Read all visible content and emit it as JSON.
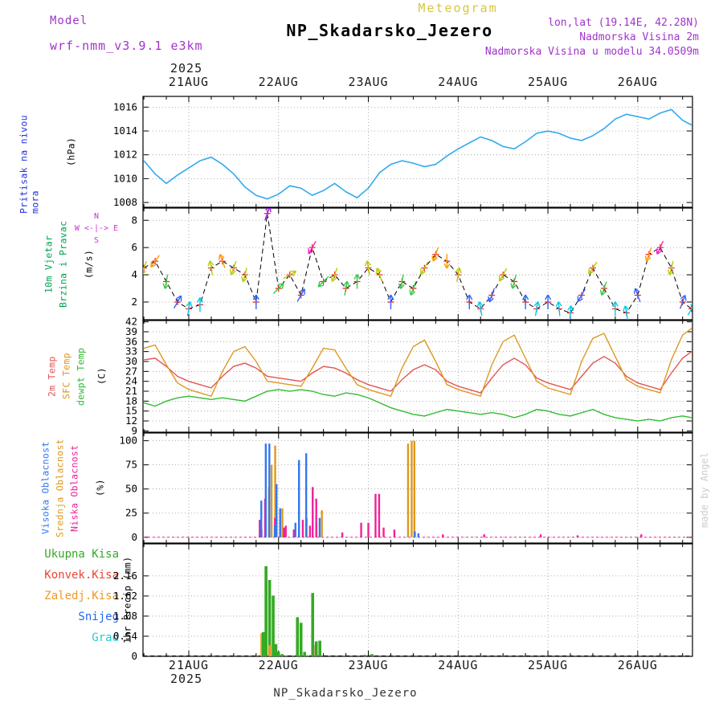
{
  "header": {
    "meteogram_label": "Meteogram",
    "model_label": "Model",
    "model_name": "wrf-nmm_v3.9.1 e3km",
    "title": "NP_Skadarsko_Jezero",
    "lonlat": "lon,lat (19.14E, 42.28N)",
    "elevation": "Nadmorska Visina 2m",
    "model_elevation": "Nadmorska Visina u modelu 34.0509m",
    "year_top": "2025",
    "year_bottom": "2025",
    "footer": "NP_Skadarsko_Jezero",
    "credit": "made by Angel"
  },
  "axis": {
    "x_range": [
      20.49,
      26.61
    ],
    "x_ticks": [
      21,
      22,
      23,
      24,
      25,
      26
    ],
    "x_tick_labels": [
      "21AUG",
      "22AUG",
      "23AUG",
      "24AUG",
      "25AUG",
      "26AUG"
    ],
    "minor_tick_days": 0.25
  },
  "panels": {
    "pressure": {
      "label": "Pritisak na nivou mora",
      "label_color": "#2233dd",
      "unit": "(hPa)",
      "yticks": [
        1008,
        1010,
        1012,
        1014,
        1016
      ],
      "yrange": [
        1007.6,
        1016.9
      ]
    },
    "wind": {
      "labels": [
        "10m Vjetar",
        "Brzina i Pravac"
      ],
      "label_color": "#00a550",
      "unit": "(m/s)",
      "yticks": [
        2,
        4,
        6,
        8
      ],
      "yrange": [
        0.7,
        8.9
      ],
      "compass": {
        "n": "N",
        "we": "W <-|-> E",
        "s": "S"
      }
    },
    "temp": {
      "labels": [
        {
          "text": "2m Temp",
          "color": "#e25555"
        },
        {
          "text": "SFC Temp",
          "color": "#dd9922"
        },
        {
          "text": "dewpt Temp",
          "color": "#33bb33"
        }
      ],
      "unit": "(C)",
      "yticks": [
        9,
        12,
        15,
        18,
        21,
        24,
        27,
        30,
        33,
        36,
        39,
        42
      ],
      "yrange": [
        8.6,
        42.4
      ]
    },
    "cloud": {
      "labels": [
        {
          "text": "Visoka Oblacnost",
          "color": "#3377ee"
        },
        {
          "text": "Srednja Oblacnost",
          "color": "#dd9922"
        },
        {
          "text": "Niska Oblacnost",
          "color": "#ee2299"
        }
      ],
      "unit": "(%)",
      "yticks": [
        0,
        25,
        50,
        75,
        100
      ],
      "yrange": [
        -6,
        108
      ]
    },
    "precip": {
      "legend": [
        {
          "text": "Ukupna Kisa",
          "color": "#33aa22"
        },
        {
          "text": "Konvek.Kisa",
          "color": "#ee4433"
        },
        {
          "text": "Zaledj.Kisa",
          "color": "#ee9922"
        },
        {
          "text": "Snijeg",
          "color": "#2266ee"
        },
        {
          "text": "Grad",
          "color": "#22cccc"
        }
      ],
      "unit": "1hr Precip (mm)",
      "yticks": [
        0,
        0.54,
        1.08,
        1.62,
        2.16
      ],
      "yrange": [
        0,
        3.02
      ]
    }
  },
  "chart_data": [
    {
      "type": "line",
      "name": "Pritisak na nivou mora",
      "unit": "hPa",
      "color": "#33aaee",
      "ylim": [
        1007.6,
        1016.9
      ],
      "x": [
        20.5,
        20.625,
        20.75,
        20.875,
        21,
        21.125,
        21.25,
        21.375,
        21.5,
        21.625,
        21.75,
        21.875,
        22,
        22.125,
        22.25,
        22.375,
        22.5,
        22.625,
        22.75,
        22.875,
        23,
        23.125,
        23.25,
        23.375,
        23.5,
        23.625,
        23.75,
        23.875,
        24,
        24.125,
        24.25,
        24.375,
        24.5,
        24.625,
        24.75,
        24.875,
        25,
        25.125,
        25.25,
        25.375,
        25.5,
        25.625,
        25.75,
        25.875,
        26,
        26.125,
        26.25,
        26.375,
        26.5,
        26.6
      ],
      "y": [
        1011.5,
        1010.4,
        1009.6,
        1010.3,
        1010.9,
        1011.5,
        1011.8,
        1011.2,
        1010.4,
        1009.3,
        1008.6,
        1008.3,
        1008.7,
        1009.4,
        1009.2,
        1008.6,
        1009.0,
        1009.6,
        1008.9,
        1008.4,
        1009.2,
        1010.5,
        1011.2,
        1011.5,
        1011.3,
        1011.0,
        1011.2,
        1011.9,
        1012.5,
        1013.0,
        1013.5,
        1013.2,
        1012.7,
        1012.5,
        1013.1,
        1013.8,
        1014.0,
        1013.8,
        1013.4,
        1013.2,
        1013.6,
        1014.2,
        1015.0,
        1015.4,
        1015.2,
        1015.0,
        1015.5,
        1015.8,
        1014.9,
        1014.5
      ]
    },
    {
      "type": "line",
      "name": "10m Vjetar Brzina i Pravac",
      "unit": "m/s",
      "line_color": "#000000",
      "marker": "plus",
      "marker_color": "#ee2222",
      "ylim": [
        0.7,
        8.9
      ],
      "palette": {
        "thresholds": [
          2,
          3,
          4,
          5,
          6,
          7.5
        ],
        "colors": [
          "#00ccee",
          "#3366ff",
          "#33cc44",
          "#b8cc00",
          "#ff9900",
          "#ee22cc",
          "#9922ee"
        ]
      },
      "x": [
        20.5,
        20.625,
        20.75,
        20.875,
        21,
        21.125,
        21.25,
        21.375,
        21.5,
        21.625,
        21.75,
        21.875,
        22,
        22.125,
        22.25,
        22.375,
        22.5,
        22.625,
        22.75,
        22.875,
        23,
        23.125,
        23.25,
        23.375,
        23.5,
        23.625,
        23.75,
        23.875,
        24,
        24.125,
        24.25,
        24.375,
        24.5,
        24.625,
        24.75,
        24.875,
        25,
        25.125,
        25.25,
        25.375,
        25.5,
        25.625,
        25.75,
        25.875,
        26,
        26.125,
        26.25,
        26.375,
        26.5,
        26.6
      ],
      "speed": [
        4.5,
        5.0,
        3.5,
        2.0,
        1.5,
        1.8,
        4.5,
        5.0,
        4.5,
        4.0,
        2.0,
        8.5,
        3.0,
        4.0,
        2.5,
        6.0,
        3.5,
        4.0,
        3.0,
        3.5,
        4.5,
        4.0,
        2.0,
        3.5,
        3.0,
        4.5,
        5.5,
        5.0,
        4.0,
        2.0,
        1.5,
        2.5,
        4.0,
        3.5,
        2.0,
        1.5,
        2.0,
        1.5,
        1.2,
        2.5,
        4.5,
        3.0,
        1.5,
        1.2,
        2.5,
        5.5,
        6.0,
        4.5,
        2.0,
        1.5
      ],
      "dir_deg": [
        200,
        215,
        190,
        30,
        10,
        0,
        350,
        340,
        200,
        195,
        0,
        20,
        45,
        60,
        30,
        210,
        225,
        200,
        10,
        0,
        350,
        340,
        0,
        190,
        200,
        210,
        200,
        180,
        10,
        0,
        350,
        200,
        210,
        195,
        0,
        10,
        0,
        355,
        5,
        210,
        215,
        200,
        0,
        350,
        340,
        200,
        205,
        195,
        20,
        30
      ]
    },
    {
      "type": "line",
      "name": "Temperatura",
      "unit": "C",
      "ylim": [
        8.6,
        42.4
      ],
      "x": [
        20.5,
        20.625,
        20.75,
        20.875,
        21,
        21.125,
        21.25,
        21.375,
        21.5,
        21.625,
        21.75,
        21.875,
        22,
        22.125,
        22.25,
        22.375,
        22.5,
        22.625,
        22.75,
        22.875,
        23,
        23.125,
        23.25,
        23.375,
        23.5,
        23.625,
        23.75,
        23.875,
        24,
        24.125,
        24.25,
        24.375,
        24.5,
        24.625,
        24.75,
        24.875,
        25,
        25.125,
        25.25,
        25.375,
        25.5,
        25.625,
        25.75,
        25.875,
        26,
        26.125,
        26.25,
        26.375,
        26.5,
        26.6
      ],
      "series": [
        {
          "key": "t2m",
          "name": "2m Temp",
          "color": "#e25555",
          "values": [
            30.5,
            31.0,
            28.5,
            25.5,
            24.0,
            23.0,
            22.0,
            25.5,
            28.5,
            29.5,
            28.0,
            25.5,
            25.0,
            24.5,
            24.0,
            26.5,
            28.5,
            28.0,
            26.5,
            24.5,
            23.0,
            22.0,
            21.0,
            24.5,
            27.5,
            29.0,
            27.5,
            24.0,
            22.5,
            21.5,
            20.5,
            25.0,
            29.0,
            31.0,
            29.0,
            25.0,
            23.5,
            22.5,
            21.5,
            25.5,
            29.5,
            31.5,
            29.5,
            25.5,
            23.5,
            22.5,
            21.5,
            26.5,
            31.0,
            33.0
          ]
        },
        {
          "key": "sfc",
          "name": "SFC Temp",
          "color": "#dd9922",
          "values": [
            34.0,
            35.0,
            29.0,
            23.5,
            21.5,
            20.5,
            19.5,
            27.0,
            33.0,
            34.5,
            30.0,
            24.0,
            23.5,
            23.0,
            22.5,
            28.0,
            34.0,
            33.5,
            28.0,
            23.0,
            21.5,
            20.5,
            19.5,
            28.0,
            34.5,
            36.5,
            30.0,
            23.0,
            21.5,
            20.5,
            19.5,
            29.0,
            36.0,
            38.0,
            31.0,
            24.0,
            22.0,
            21.0,
            20.0,
            30.0,
            37.0,
            38.5,
            31.5,
            24.5,
            22.5,
            21.5,
            20.5,
            30.5,
            38.0,
            40.0
          ]
        },
        {
          "key": "dewpt",
          "name": "dewpt Temp",
          "color": "#33bb33",
          "values": [
            17.5,
            16.5,
            18.0,
            19.0,
            19.5,
            19.0,
            18.5,
            19.0,
            18.5,
            18.0,
            19.5,
            21.0,
            21.5,
            21.0,
            21.5,
            21.0,
            20.0,
            19.5,
            20.5,
            20.0,
            19.0,
            17.5,
            16.0,
            15.0,
            14.0,
            13.5,
            14.5,
            15.5,
            15.0,
            14.5,
            14.0,
            14.5,
            14.0,
            13.0,
            14.0,
            15.5,
            15.0,
            14.0,
            13.5,
            14.5,
            15.5,
            14.0,
            13.0,
            12.5,
            12.0,
            12.5,
            12.0,
            13.0,
            13.5,
            13.0
          ]
        }
      ]
    },
    {
      "type": "bar",
      "name": "Oblacnost",
      "unit": "%",
      "ylim": [
        -6,
        108
      ],
      "series": {
        "v": {
          "name": "Visoka Oblacnost",
          "color": "#3377ee",
          "offset": -2.5
        },
        "s": {
          "name": "Srednja Oblacnost",
          "color": "#dd9922",
          "offset": 2.5
        },
        "n": {
          "name": "Niska Oblacnost",
          "color": "#ee2299",
          "offset": 0
        }
      },
      "bars": [
        [
          21.79,
          "n",
          18
        ],
        [
          21.81,
          "n",
          8
        ],
        [
          21.83,
          "v",
          38
        ],
        [
          21.85,
          "n",
          40
        ],
        [
          21.87,
          "s",
          52
        ],
        [
          21.88,
          "v",
          97
        ],
        [
          21.9,
          "s",
          75
        ],
        [
          21.92,
          "v",
          97
        ],
        [
          21.94,
          "s",
          95
        ],
        [
          21.96,
          "n",
          20
        ],
        [
          21.98,
          "v",
          12
        ],
        [
          22.0,
          "v",
          55
        ],
        [
          22.02,
          "s",
          30
        ],
        [
          22.04,
          "v",
          30
        ],
        [
          22.06,
          "n",
          10
        ],
        [
          22.08,
          "n",
          12
        ],
        [
          22.17,
          "n",
          8
        ],
        [
          22.21,
          "v",
          15
        ],
        [
          22.25,
          "v",
          80
        ],
        [
          22.27,
          "n",
          18
        ],
        [
          22.29,
          "s",
          20
        ],
        [
          22.33,
          "v",
          87
        ],
        [
          22.35,
          "n",
          12
        ],
        [
          22.38,
          "n",
          52
        ],
        [
          22.4,
          "s",
          15
        ],
        [
          22.42,
          "n",
          40
        ],
        [
          22.46,
          "s",
          28
        ],
        [
          22.48,
          "v",
          20
        ],
        [
          22.71,
          "n",
          5
        ],
        [
          22.92,
          "n",
          15
        ],
        [
          23.0,
          "n",
          15
        ],
        [
          23.08,
          "n",
          45
        ],
        [
          23.12,
          "n",
          45
        ],
        [
          23.17,
          "n",
          10
        ],
        [
          23.29,
          "n",
          8
        ],
        [
          23.42,
          "s",
          97
        ],
        [
          23.46,
          "s",
          100
        ],
        [
          23.49,
          "s",
          100
        ],
        [
          23.54,
          "v",
          6
        ],
        [
          23.58,
          "v",
          4
        ],
        [
          23.83,
          "n",
          3
        ],
        [
          24.29,
          "n",
          3
        ],
        [
          24.92,
          "n",
          3
        ],
        [
          25.33,
          "n",
          2
        ],
        [
          26.04,
          "n",
          3
        ]
      ]
    },
    {
      "type": "bar",
      "name": "1hr Precip",
      "unit": "mm",
      "ylim": [
        0,
        3.02
      ],
      "series": {
        "u": {
          "name": "Ukupna Kisa",
          "color": "#33aa22",
          "offset": 0
        },
        "k": {
          "name": "Konvek.Kisa",
          "color": "#ee4433",
          "offset": 1.8
        },
        "z": {
          "name": "Zaledj.Kisa",
          "color": "#ee9922",
          "offset": -1.8
        },
        "sn": {
          "name": "Snijeg",
          "color": "#2266ee",
          "offset": 0
        },
        "g": {
          "name": "Grad",
          "color": "#22cccc",
          "offset": 0
        }
      },
      "bars": [
        [
          21.83,
          "z",
          0.62
        ],
        [
          21.83,
          "u",
          0.65
        ],
        [
          21.86,
          "u",
          2.42
        ],
        [
          21.9,
          "u",
          2.05
        ],
        [
          21.92,
          "z",
          0.3
        ],
        [
          21.94,
          "u",
          1.63
        ],
        [
          21.97,
          "u",
          0.33
        ],
        [
          22.0,
          "u",
          0.12
        ],
        [
          22.04,
          "u",
          0.06
        ],
        [
          22.21,
          "u",
          1.05
        ],
        [
          22.25,
          "u",
          0.9
        ],
        [
          22.29,
          "u",
          0.12
        ],
        [
          22.38,
          "u",
          1.7
        ],
        [
          22.4,
          "k",
          0.3
        ],
        [
          22.42,
          "u",
          0.4
        ],
        [
          22.46,
          "u",
          0.42
        ],
        [
          22.96,
          "u",
          0.04
        ],
        [
          23.04,
          "u",
          0.06
        ]
      ]
    }
  ]
}
